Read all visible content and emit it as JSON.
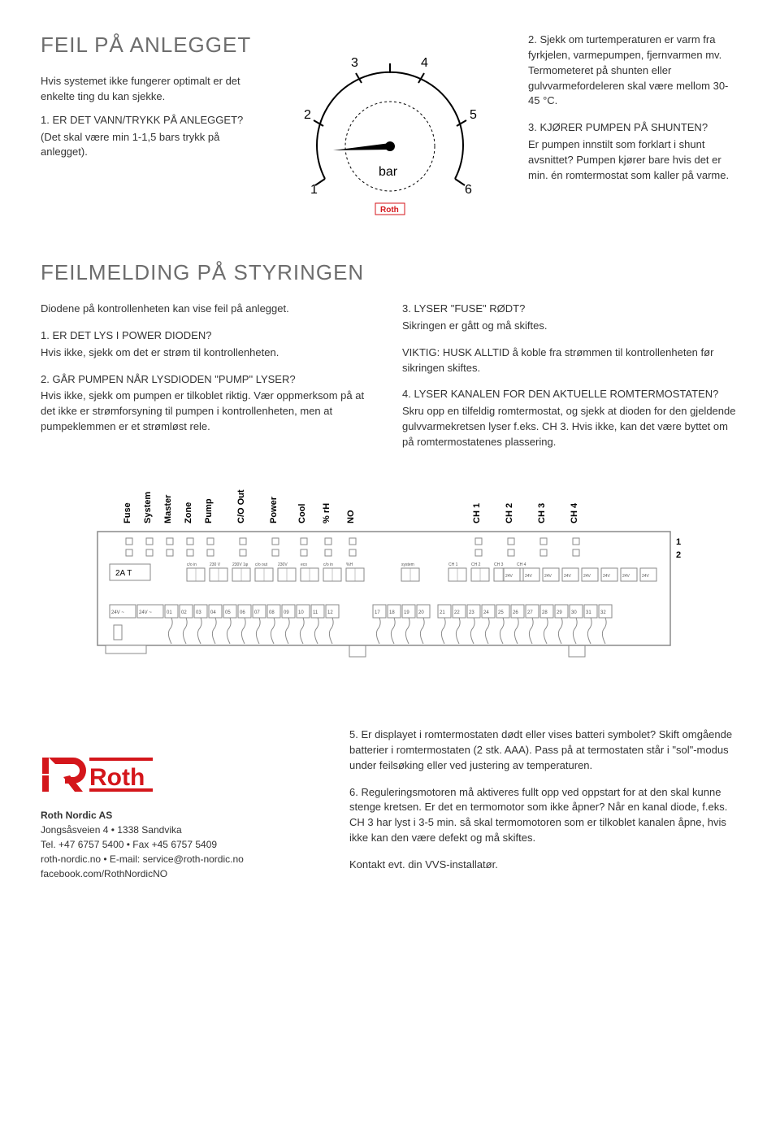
{
  "section1": {
    "title": "FEIL PÅ ANLEGGET",
    "left": {
      "intro": "Hvis systemet ikke fungerer optimalt er det enkelte ting du kan sjekke.",
      "q1": "1. ER DET VANN/TRYKK PÅ ANLEGGET?",
      "a1": "(Det skal være min 1-1,5 bars trykk på anlegget)."
    },
    "gauge": {
      "ticks": [
        "1",
        "2",
        "3",
        "4",
        "5",
        "6"
      ],
      "unit": "bar",
      "brand": "Roth",
      "stroke": "#000000",
      "dash_color": "#000000"
    },
    "right": {
      "p1": "2. Sjekk om turtemperaturen er varm fra fyrkjelen, varmepumpen, fjernvarmen mv. Termometeret på shunten eller gulvvarmefordeleren skal være mellom 30-45 °C.",
      "q3": "3. KJØRER PUMPEN PÅ SHUNTEN?",
      "a3": "Er pumpen innstilt som forklart i shunt avsnittet? Pumpen kjører bare hvis det er min. én romtermostat som kaller på varme."
    }
  },
  "section2": {
    "title": "FEILMELDING PÅ STYRINGEN",
    "left": {
      "intro": "Diodene på kontrollenheten kan vise feil på anlegget.",
      "q1": "1. ER DET LYS I POWER DIODEN?",
      "a1": "Hvis ikke, sjekk om det er strøm til kontrollenheten.",
      "q2": "2. GÅR PUMPEN NÅR LYSDIODEN \"PUMP\" LYSER?",
      "a2": "Hvis ikke, sjekk om pumpen er tilkoblet riktig. Vær oppmerksom på at det ikke er strømforsyning til pumpen i kontrollenheten, men at pumpeklemmen er et strømløst rele."
    },
    "right": {
      "q3": "3. LYSER \"FUSE\" RØDT?",
      "a3": "Sikringen er gått og må skiftes.",
      "warn": "VIKTIG: HUSK ALLTID å koble fra strømmen til kontrollenheten før sikringen skiftes.",
      "q4": "4. LYSER KANALEN FOR DEN AKTUELLE ROMTERMOSTATEN?",
      "a4": "Skru opp en tilfeldig romtermostat, og sjekk at dioden for den gjeldende gulvvarmekretsen lyser f.eks. CH 3. Hvis ikke, kan det være byttet om på romtermostatenes plassering."
    }
  },
  "controller": {
    "labels": [
      "Fuse",
      "System",
      "Master",
      "Zone",
      "Pump",
      "C/O Out",
      "Power",
      "Cool",
      "% rH",
      "NO",
      "CH 1",
      "CH 2",
      "CH 3",
      "CH 4"
    ],
    "rows_right": [
      "1",
      "2"
    ],
    "fuse": "2A T",
    "terminals_top": [
      "c/o in",
      "230 V",
      "230V 1φ",
      "c/o out",
      "230V",
      "eco",
      "c/o in",
      "%H",
      "system",
      "CH 1",
      "CH 2",
      "CH 3",
      "CH 4"
    ],
    "terminals_24v": [
      "24V",
      "24V",
      "24V",
      "24V",
      "24V",
      "24V",
      "24V",
      "24V"
    ],
    "terminals_bottom": [
      "24V ~",
      "24V ~",
      "01",
      "02",
      "03",
      "04",
      "05",
      "06",
      "07",
      "08",
      "09",
      "10",
      "11",
      "12",
      "17",
      "18",
      "19",
      "20",
      "21",
      "22",
      "23",
      "24",
      "25",
      "26",
      "27",
      "28",
      "29",
      "30",
      "31",
      "32"
    ],
    "stroke": "#8a8a8a",
    "bg": "#ffffff"
  },
  "bottom": {
    "p5": "5. Er displayet i romtermostaten dødt eller vises batteri symbolet? Skift omgående batterier i romtermostaten (2 stk. AAA). Pass på at termostaten står i \"sol\"-modus under feilsøking eller ved justering av temperaturen.",
    "p6": "6. Reguleringsmotoren må aktiveres fullt opp ved oppstart for at den skal kunne stenge kretsen. Er det en termomotor som ikke åpner? Når en kanal diode, f.eks. CH 3 har lyst i 3-5 min. så skal termomotoren som er tilkoblet kanalen åpne, hvis ikke kan den være defekt og må skiftes.",
    "p7": "Kontakt evt. din VVS-installatør."
  },
  "contact": {
    "company": "Roth Nordic AS",
    "addr": "Jongsåsveien 4 • 1338 Sandvika",
    "phone": "Tel. +47 6757 5400 • Fax +45 6757 5409",
    "web": "roth-nordic.no • E-mail: service@roth-nordic.no",
    "fb": "facebook.com/RothNordicNO"
  },
  "colors": {
    "heading": "#6d6d6d",
    "body": "#333333",
    "red": "#d4161b"
  }
}
